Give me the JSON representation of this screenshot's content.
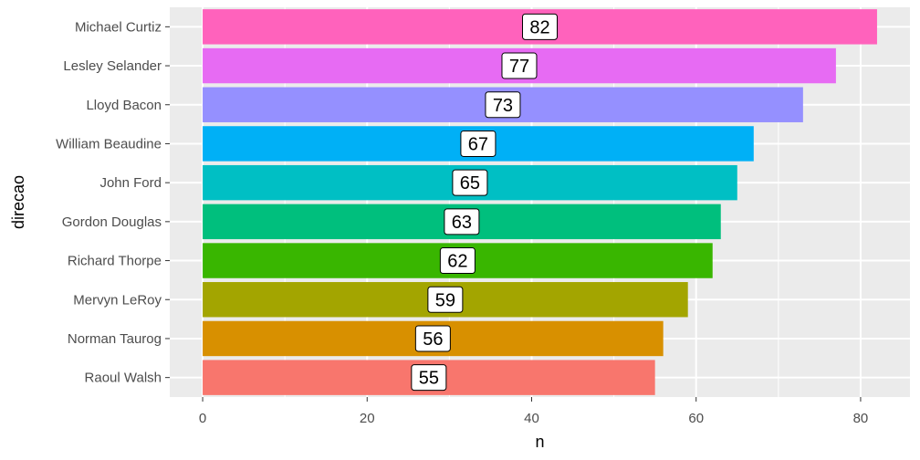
{
  "chart_data": {
    "type": "bar",
    "orientation": "horizontal",
    "categories": [
      "Raoul Walsh",
      "Norman Taurog",
      "Mervyn LeRoy",
      "Richard Thorpe",
      "Gordon Douglas",
      "John Ford",
      "William Beaudine",
      "Lloyd Bacon",
      "Lesley Selander",
      "Michael Curtiz"
    ],
    "values": [
      55,
      56,
      59,
      62,
      63,
      65,
      67,
      73,
      77,
      82
    ],
    "colors": [
      "#F8766D",
      "#D89000",
      "#A3A500",
      "#39B600",
      "#00BF7D",
      "#00BFC4",
      "#00B0F6",
      "#9590FF",
      "#E76BF3",
      "#FF62BC"
    ],
    "data_labels": [
      "55",
      "56",
      "59",
      "62",
      "63",
      "65",
      "67",
      "73",
      "77",
      "82"
    ],
    "xlabel": "n",
    "ylabel": "direcao",
    "xlim": [
      -4,
      86
    ],
    "x_ticks": [
      0,
      20,
      40,
      60,
      80
    ],
    "x_tick_labels": [
      "0",
      "20",
      "40",
      "60",
      "80"
    ],
    "grid": true,
    "legend": "none",
    "panel_background": "#EBEBEB",
    "grid_color": "#FFFFFF"
  }
}
